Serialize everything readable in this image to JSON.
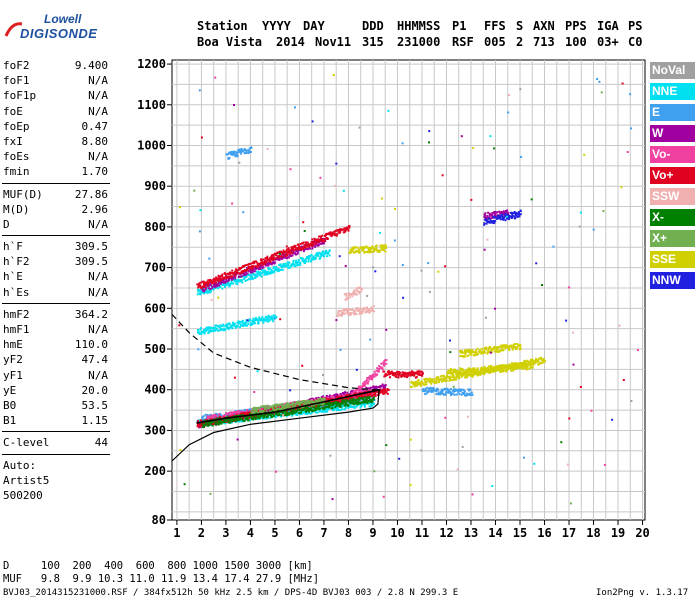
{
  "logo": {
    "line1": "Lowell",
    "line2": "DIGISONDE"
  },
  "header": {
    "labels": [
      "Station",
      "YYYY",
      "DAY",
      "DDD",
      "HHMMSS",
      "P1",
      "FFS",
      "S",
      "AXN",
      "PPS",
      "IGA",
      "PS"
    ],
    "values": [
      "Boa Vista",
      "2014",
      "Nov11",
      "315",
      "231000",
      "RSF",
      "005",
      "2",
      "713",
      "100",
      "03+",
      "C0"
    ]
  },
  "params": {
    "group1": [
      {
        "k": "foF2",
        "v": "9.400"
      },
      {
        "k": "foF1",
        "v": "N/A"
      },
      {
        "k": "foF1p",
        "v": "N/A"
      },
      {
        "k": "foE",
        "v": "N/A"
      },
      {
        "k": "foEp",
        "v": "0.47"
      },
      {
        "k": "fxI",
        "v": "8.80"
      },
      {
        "k": "foEs",
        "v": "N/A"
      },
      {
        "k": "fmin",
        "v": "1.70"
      }
    ],
    "group2": [
      {
        "k": "MUF(D)",
        "v": "27.86"
      },
      {
        "k": "M(D)",
        "v": "2.96"
      },
      {
        "k": "D",
        "v": "N/A"
      }
    ],
    "group3": [
      {
        "k": "h`F",
        "v": "309.5"
      },
      {
        "k": "h`F2",
        "v": "309.5"
      },
      {
        "k": "h`E",
        "v": "N/A"
      },
      {
        "k": "h`Es",
        "v": "N/A"
      }
    ],
    "group4": [
      {
        "k": "hmF2",
        "v": "364.2"
      },
      {
        "k": "hmF1",
        "v": "N/A"
      },
      {
        "k": "hmE",
        "v": "110.0"
      },
      {
        "k": "yF2",
        "v": "47.4"
      },
      {
        "k": "yF1",
        "v": "N/A"
      },
      {
        "k": "yE",
        "v": "20.0"
      },
      {
        "k": "B0",
        "v": "53.5"
      },
      {
        "k": "B1",
        "v": "1.15"
      }
    ],
    "clevel": {
      "k": "C-level",
      "v": "44"
    },
    "auto": [
      "Auto:",
      "Artist5",
      "500200"
    ]
  },
  "bottom": {
    "d_row": "D     100  200  400  600  800 1000 1500 3000 [km]",
    "muf_row": "MUF   9.8  9.9 10.3 11.0 11.9 13.4 17.4 27.9 [MHz]",
    "footer_left": "BVJ03_2014315231000.RSF / 384fx512h 50 kHz 2.5 km / DPS-4D BVJ03 003 / 2.8 N 299.3 E",
    "footer_right": "Ion2Png v. 1.3.17"
  },
  "legend": [
    {
      "label": "NoVal",
      "color": "#a0a0a0"
    },
    {
      "label": "NNE",
      "color": "#00e0f0"
    },
    {
      "label": "E",
      "color": "#40a0f0"
    },
    {
      "label": "W",
      "color": "#a000a0"
    },
    {
      "label": "Vo-",
      "color": "#f040a0"
    },
    {
      "label": "Vo+",
      "color": "#e00020"
    },
    {
      "label": "SSW",
      "color": "#f0b0b0"
    },
    {
      "label": "X-",
      "color": "#008000"
    },
    {
      "label": "X+",
      "color": "#70b050"
    },
    {
      "label": "SSE",
      "color": "#d0d000"
    },
    {
      "label": "NNW",
      "color": "#2020e0"
    }
  ],
  "chart_data": {
    "type": "scatter",
    "xlim": [
      0.8,
      20.1
    ],
    "ylim": [
      80,
      1210
    ],
    "x_ticks": [
      1,
      2,
      3,
      4,
      5,
      6,
      7,
      8,
      9,
      10,
      11,
      12,
      13,
      14,
      15,
      16,
      17,
      18,
      19,
      20
    ],
    "y_ticks": [
      80,
      200,
      300,
      400,
      500,
      600,
      700,
      800,
      900,
      1000,
      1100,
      1200
    ],
    "grid": true,
    "grid_step_x": 0.5,
    "grid_step_y": 50,
    "legend_position": "right",
    "series": [
      {
        "name": "NNE",
        "color": "#00e0f0",
        "segments": [
          [
            1.8,
            640,
            7.2,
            740
          ],
          [
            1.8,
            545,
            5.0,
            580
          ],
          [
            1.8,
            320,
            9.0,
            370
          ]
        ]
      },
      {
        "name": "E",
        "color": "#40a0f0",
        "segments": [
          [
            2.0,
            332,
            9.0,
            385
          ],
          [
            3.0,
            975,
            4.0,
            995
          ],
          [
            11.0,
            400,
            13.0,
            395
          ]
        ]
      },
      {
        "name": "W",
        "color": "#a000a0",
        "segments": [
          [
            1.8,
            315,
            9.5,
            410
          ],
          [
            2.0,
            650,
            7.0,
            770
          ],
          [
            13.5,
            830,
            14.5,
            835
          ]
        ]
      },
      {
        "name": "Vo-",
        "color": "#f040a0",
        "segments": [
          [
            2.2,
            330,
            9.0,
            395
          ],
          [
            8.0,
            380,
            9.5,
            470
          ]
        ]
      },
      {
        "name": "Vo+",
        "color": "#e00020",
        "segments": [
          [
            1.8,
            655,
            8.0,
            800
          ],
          [
            1.8,
            318,
            9.6,
            400
          ],
          [
            9.4,
            440,
            11.0,
            440
          ]
        ]
      },
      {
        "name": "SSW",
        "color": "#f0b0b0",
        "segments": [
          [
            7.5,
            590,
            9.0,
            600
          ],
          [
            7.8,
            630,
            8.5,
            650
          ]
        ]
      },
      {
        "name": "X-",
        "color": "#008000",
        "segments": [
          [
            2.0,
            318,
            9.0,
            380
          ]
        ]
      },
      {
        "name": "X+",
        "color": "#70b050",
        "segments": [
          [
            4.0,
            350,
            7.0,
            375
          ]
        ]
      },
      {
        "name": "SSE",
        "color": "#d0d000",
        "segments": [
          [
            8.0,
            745,
            9.5,
            750
          ],
          [
            10.5,
            415,
            16.0,
            475
          ],
          [
            12.0,
            445,
            15.5,
            460
          ],
          [
            12.5,
            490,
            15.0,
            510
          ]
        ]
      },
      {
        "name": "NNW",
        "color": "#2020e0",
        "segments": [
          [
            13.5,
            815,
            15.0,
            835
          ]
        ]
      }
    ],
    "profile_solid": [
      [
        0.8,
        225
      ],
      [
        1.5,
        265
      ],
      [
        2.5,
        295
      ],
      [
        4,
        315
      ],
      [
        6,
        330
      ],
      [
        8,
        345
      ],
      [
        9,
        355
      ],
      [
        9.2,
        365
      ],
      [
        9.25,
        400
      ]
    ],
    "profile_dashed": [
      [
        0.8,
        585
      ],
      [
        1.5,
        540
      ],
      [
        2.5,
        490
      ],
      [
        4,
        455
      ],
      [
        6,
        425
      ],
      [
        8,
        405
      ],
      [
        9,
        400
      ],
      [
        9.25,
        400
      ]
    ],
    "trace_black": [
      [
        1.8,
        318
      ],
      [
        3,
        330
      ],
      [
        5,
        345
      ],
      [
        7,
        370
      ],
      [
        8.5,
        390
      ],
      [
        9.3,
        400
      ]
    ]
  }
}
